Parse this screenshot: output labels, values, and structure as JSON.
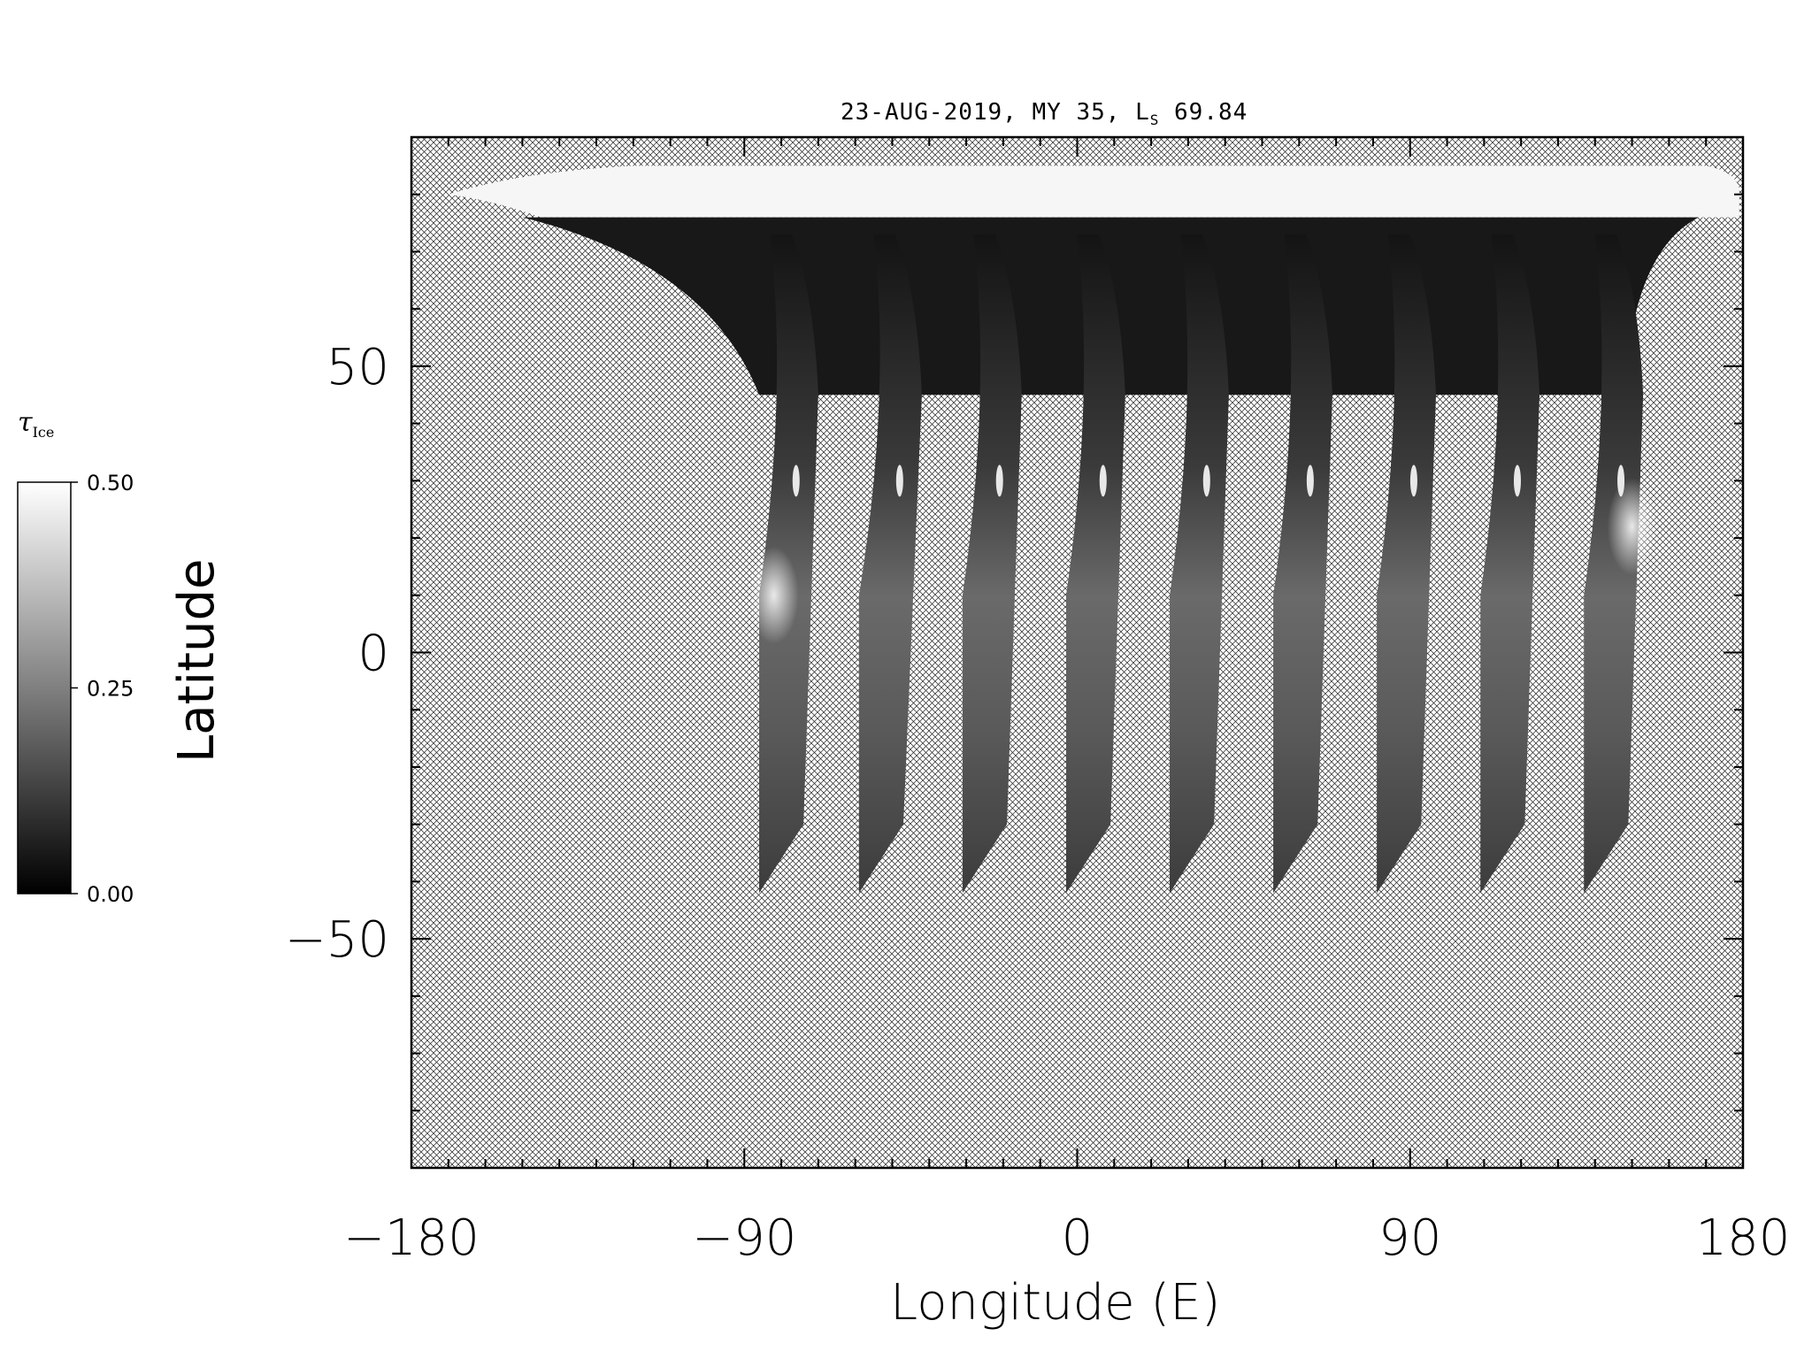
{
  "chart_data": {
    "type": "heatmap",
    "title": "23-AUG-2019, MY 35,  L",
    "title_subscript": "S",
    "title_suffix": " 69.84",
    "xlabel": "Longitude (E)",
    "ylabel": "Latitude",
    "xlim": [
      -180,
      180
    ],
    "ylim": [
      -90,
      90
    ],
    "x_ticks": [
      -180,
      -90,
      0,
      90,
      180
    ],
    "x_tick_labels": [
      "−180",
      "−90",
      "0",
      "90",
      "180"
    ],
    "y_ticks": [
      -50,
      0,
      50
    ],
    "y_tick_labels": [
      "−50",
      "0",
      "50"
    ],
    "colorbar": {
      "label": "τ",
      "label_subscript": "Ice",
      "range": [
        0.0,
        0.5
      ],
      "ticks": [
        0.0,
        0.25,
        0.5
      ],
      "tick_labels": [
        "0.00",
        "0.25",
        "0.50"
      ],
      "colormap": "grayscale"
    },
    "background": "crosshatch (no data)",
    "swaths": [
      {
        "lon_south": -86,
        "lon_north": -79,
        "lat_south": -42
      },
      {
        "lon_south": -59,
        "lon_north": -51,
        "lat_south": -42
      },
      {
        "lon_south": -31,
        "lon_north": -24,
        "lat_south": -42
      },
      {
        "lon_south": -3,
        "lon_north": 4,
        "lat_south": -42
      },
      {
        "lon_south": 25,
        "lon_north": 32,
        "lat_south": -42
      },
      {
        "lon_south": 53,
        "lon_north": 60,
        "lat_south": -42
      },
      {
        "lon_south": 81,
        "lon_north": 88,
        "lat_south": -42
      },
      {
        "lon_south": 109,
        "lon_north": 116,
        "lat_south": -42
      },
      {
        "lon_south": 137,
        "lon_north": 144,
        "lat_south": -42
      }
    ],
    "polar_cap_lat": 76,
    "bright_features": [
      {
        "lon": -82,
        "lat": 10,
        "tau": 0.42
      },
      {
        "lon": 150,
        "lat": 22,
        "tau": 0.5
      }
    ]
  },
  "colors": {
    "axis": "#000000",
    "hatch": "#000000",
    "background": "#ffffff",
    "polar_cap": "#f6f6f6"
  }
}
